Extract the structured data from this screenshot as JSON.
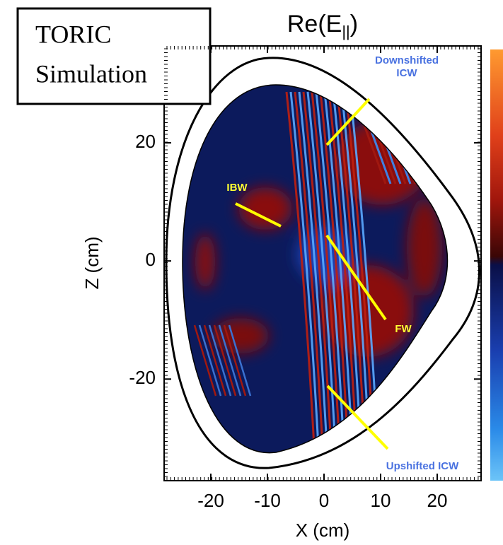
{
  "chart_data": {
    "type": "field",
    "title": "Re(E",
    "title_subscript": "||",
    "title_end": ")",
    "label_box": [
      "TORIC",
      "Simulation"
    ],
    "xlabel": "X (cm)",
    "ylabel": "Z (cm)",
    "xlim": [
      -28.25,
      27.75
    ],
    "ylim": [
      -37.2,
      36.4
    ],
    "xticks": [
      -20,
      -10,
      0,
      10,
      20
    ],
    "yticks": [
      -20,
      0,
      20
    ],
    "annotations": [
      {
        "lines": [
          "Downshifted",
          "ICW"
        ],
        "color": "#4a72e0"
      },
      {
        "lines": [
          "IBW"
        ],
        "color": "#ffff33"
      },
      {
        "lines": [
          "FW"
        ],
        "color": "#ffff33"
      },
      {
        "lines": [
          "Upshifted ICW"
        ],
        "color": "#4a72e0"
      }
    ]
  }
}
